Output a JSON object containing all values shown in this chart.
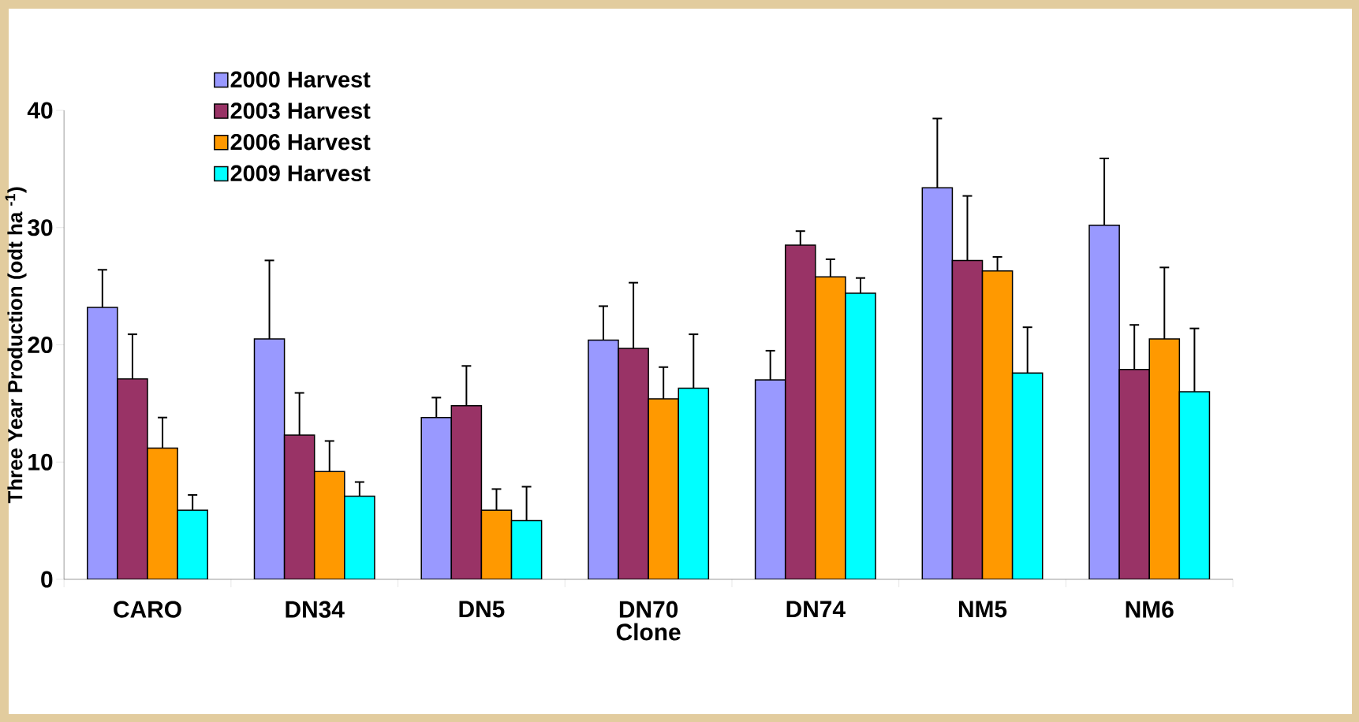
{
  "chart_data": {
    "type": "bar",
    "xlabel": "Clone",
    "ylabel": "Three Year Production (odt ha $^{-1}$)",
    "categories": [
      "CARO",
      "DN34",
      "DN5",
      "DN70",
      "DN74",
      "NM5",
      "NM6"
    ],
    "series": [
      {
        "name": "2000 Harvest",
        "color": "#9999ff",
        "values": [
          23.2,
          20.5,
          13.8,
          20.4,
          17.0,
          33.4,
          30.2
        ],
        "errors": [
          3.2,
          6.7,
          1.7,
          2.9,
          2.5,
          5.9,
          5.7
        ]
      },
      {
        "name": "2003 Harvest",
        "color": "#993366",
        "values": [
          17.1,
          12.3,
          14.8,
          19.7,
          28.5,
          27.2,
          17.9
        ],
        "errors": [
          3.8,
          3.6,
          3.4,
          5.6,
          1.2,
          5.5,
          3.8
        ]
      },
      {
        "name": "2006 Harvest",
        "color": "#ff9900",
        "values": [
          11.2,
          9.2,
          5.9,
          15.4,
          25.8,
          26.3,
          20.5
        ],
        "errors": [
          2.6,
          2.6,
          1.8,
          2.7,
          1.5,
          1.2,
          6.1
        ]
      },
      {
        "name": "2009 Harvest",
        "color": "#00ffff",
        "values": [
          5.9,
          7.1,
          5.0,
          16.3,
          24.4,
          17.6,
          16.0
        ],
        "errors": [
          1.3,
          1.2,
          2.9,
          4.6,
          1.3,
          3.9,
          5.4
        ]
      }
    ],
    "ylim": [
      0,
      40
    ],
    "yticks": [
      0,
      10,
      20,
      30,
      40
    ],
    "legend": "top left",
    "grid": false
  }
}
